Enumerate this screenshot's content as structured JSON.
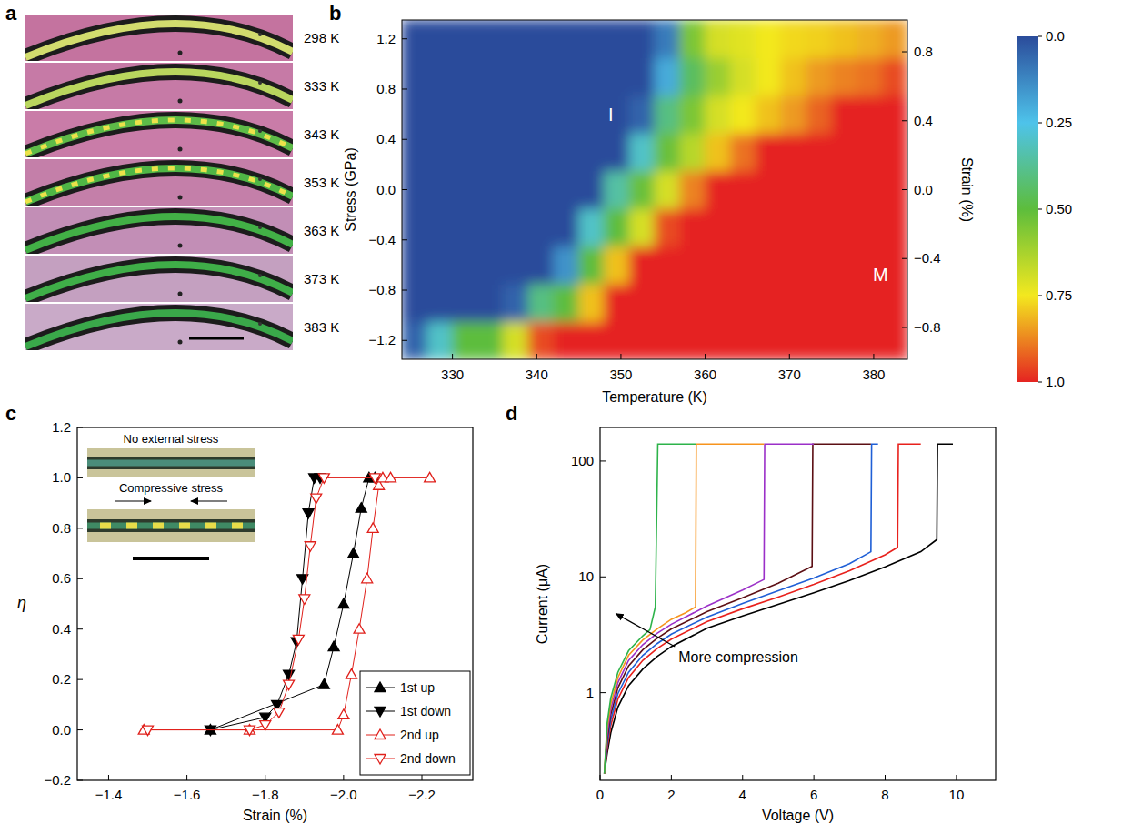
{
  "panel_a": {
    "panel": "a",
    "images": [
      {
        "label": "298 K",
        "color": "#d2dc6e",
        "domains": false
      },
      {
        "label": "333 K",
        "color": "#b9d65e",
        "domains": false
      },
      {
        "label": "343 K",
        "color": "#5dbb48",
        "domains": true
      },
      {
        "label": "353 K",
        "color": "#4fb646",
        "domains": true
      },
      {
        "label": "363 K",
        "color": "#42b046",
        "domains": false
      },
      {
        "label": "373 K",
        "color": "#3fae48",
        "domains": false
      },
      {
        "label": "383 K",
        "color": "#3aa84a",
        "domains": false
      }
    ]
  },
  "chart_data": [
    {
      "panel": "b",
      "type": "heatmap",
      "xlabel": "Temperature (K)",
      "ylabel": "Stress (GPa)",
      "y2label": "Strain (%)",
      "xlim": [
        324,
        384
      ],
      "ylim": [
        -1.35,
        1.35
      ],
      "y2lim": [
        -0.985,
        0.985
      ],
      "xticks": [
        330,
        340,
        350,
        360,
        370,
        380
      ],
      "yticks": [
        {
          "value": -1.2,
          "label": "−1.2"
        },
        {
          "value": -0.8,
          "label": "−0.8"
        },
        {
          "value": -0.4,
          "label": "−0.4"
        },
        {
          "value": 0,
          "label": "0.0"
        },
        0.4,
        0.8,
        1.2
      ],
      "y2ticks": [
        {
          "value": -0.8,
          "label": "−0.8"
        },
        {
          "value": -0.4,
          "label": "−0.4"
        },
        {
          "value": 0,
          "label": "0.0"
        },
        0.4,
        0.8
      ],
      "x": [
        325.5,
        328.5,
        331.5,
        334.5,
        337.5,
        340.5,
        343.5,
        346.5,
        349.5,
        352.5,
        355.5,
        358.5,
        361.5,
        364.5,
        367.5,
        370.5,
        373.5,
        376.5,
        379.5,
        382.5
      ],
      "y": [
        -1.2,
        -0.9,
        -0.6,
        -0.3,
        0,
        0.3,
        0.6,
        0.9,
        1.2
      ],
      "cells": [
        [
          0.05,
          0.3,
          0.5,
          0.5,
          0.7,
          0.95,
          1,
          1,
          1,
          1,
          1,
          1,
          1,
          1,
          1,
          1,
          1,
          1,
          1,
          1
        ],
        [
          0,
          0,
          0,
          0,
          0.05,
          0.4,
          0.5,
          0.8,
          1,
          1,
          1,
          1,
          1,
          1,
          1,
          1,
          1,
          1,
          1,
          1
        ],
        [
          0,
          0,
          0,
          0,
          0,
          0,
          0.15,
          0.5,
          0.8,
          1,
          1,
          1,
          1,
          1,
          1,
          1,
          1,
          1,
          1,
          1
        ],
        [
          0,
          0,
          0,
          0,
          0,
          0,
          0,
          0.3,
          0.5,
          0.7,
          0.95,
          1,
          1,
          1,
          1,
          1,
          1,
          1,
          1,
          1
        ],
        [
          0,
          0,
          0,
          0,
          0,
          0,
          0,
          0,
          0.35,
          0.52,
          0.7,
          0.88,
          1,
          1,
          1,
          1,
          1,
          1,
          1,
          1
        ],
        [
          0,
          0,
          0,
          0,
          0,
          0,
          0,
          0,
          0,
          0.3,
          0.52,
          0.65,
          0.8,
          0.9,
          1,
          1,
          1,
          1,
          1,
          1
        ],
        [
          0,
          0,
          0,
          0,
          0,
          0,
          0,
          0,
          0,
          0.05,
          0.4,
          0.55,
          0.7,
          0.75,
          0.8,
          0.85,
          0.92,
          1,
          1,
          1
        ],
        [
          0,
          0,
          0,
          0,
          0,
          0,
          0,
          0,
          0,
          0,
          0.2,
          0.45,
          0.6,
          0.7,
          0.75,
          0.8,
          0.85,
          0.88,
          0.9,
          0.95
        ],
        [
          0,
          0,
          0,
          0,
          0,
          0,
          0,
          0,
          0,
          0,
          0.1,
          0.55,
          0.7,
          0.72,
          0.75,
          0.77,
          0.78,
          0.8,
          0.82,
          0.85
        ]
      ],
      "colorbar": {
        "range": [
          0,
          1
        ],
        "ticks": [
          {
            "value": 0,
            "label": "0.0"
          },
          0.25,
          {
            "value": 0.5,
            "label": "0.50"
          },
          0.75,
          {
            "value": 1,
            "label": "1.0"
          }
        ],
        "colors": [
          "#2b4c9b",
          "#4ec3ea",
          "#5dbd3c",
          "#f3e81f",
          "#e52421"
        ]
      },
      "annotations": [
        {
          "text": "I",
          "x": 348.8,
          "y": 0.6
        },
        {
          "text": "M",
          "x": 380.8,
          "y": -0.68
        }
      ]
    },
    {
      "panel": "c",
      "type": "line",
      "xlabel": "Strain (%)",
      "ylabel": "η",
      "legend": "lower right",
      "xlim": [
        -1.32,
        -2.33
      ],
      "ylim": [
        -0.2,
        1.2
      ],
      "xticks": [
        {
          "value": -1.4,
          "label": "−1.4"
        },
        {
          "value": -1.6,
          "label": "−1.6"
        },
        {
          "value": -1.8,
          "label": "−1.8"
        },
        {
          "value": -2.0,
          "label": "−2.0"
        },
        {
          "value": -2.2,
          "label": "−2.2"
        }
      ],
      "yticks": [
        {
          "value": -0.2,
          "label": "−0.2"
        },
        {
          "value": 0,
          "label": "0.0"
        },
        0.2,
        0.4,
        0.6,
        0.8,
        {
          "value": 1,
          "label": "1.0"
        },
        1.2
      ],
      "inset": {
        "texts": [
          "No external stress",
          "Compressive stress"
        ]
      },
      "series": [
        {
          "name": "1st up",
          "color": "#000000",
          "marker": "filled-triangle-up",
          "x": [
            -1.66,
            -1.95,
            -1.975,
            -2.0,
            -2.025,
            -2.045,
            -2.065,
            -2.08
          ],
          "values": [
            0,
            0.18,
            0.33,
            0.5,
            0.7,
            0.88,
            1.0,
            1.0
          ]
        },
        {
          "name": "1st down",
          "color": "#000000",
          "marker": "filled-triangle-down",
          "x": [
            -1.94,
            -1.925,
            -1.91,
            -1.895,
            -1.88,
            -1.86,
            -1.83,
            -1.8,
            -1.66
          ],
          "values": [
            1,
            1,
            0.86,
            0.6,
            0.35,
            0.22,
            0.1,
            0.05,
            0
          ]
        },
        {
          "name": "2nd up",
          "color": "#e0201b",
          "marker": "open-triangle-up",
          "x": [
            -1.49,
            -1.76,
            -1.985,
            -2.0,
            -2.02,
            -2.04,
            -2.06,
            -2.075,
            -2.09,
            -2.1,
            -2.12,
            -2.22
          ],
          "values": [
            0,
            0,
            0,
            0.06,
            0.22,
            0.4,
            0.6,
            0.8,
            0.97,
            1,
            1,
            1
          ]
        },
        {
          "name": "2nd down",
          "color": "#e0201b",
          "marker": "open-triangle-down",
          "x": [
            -2.08,
            -1.95,
            -1.93,
            -1.915,
            -1.9,
            -1.885,
            -1.86,
            -1.835,
            -1.8,
            -1.76,
            -1.5
          ],
          "values": [
            1,
            1,
            0.92,
            0.73,
            0.52,
            0.36,
            0.18,
            0.07,
            0.02,
            0,
            0
          ]
        }
      ]
    },
    {
      "panel": "d",
      "type": "line",
      "log": "y",
      "xlabel": "Voltage (V)",
      "ylabel": "Current (μA)",
      "xlim": [
        0,
        11.1
      ],
      "ylim": [
        0.175,
        195
      ],
      "xticks": [
        0,
        2,
        4,
        6,
        8,
        10
      ],
      "yticks": [
        1,
        10,
        100
      ],
      "annotations": [
        {
          "text": "More compression",
          "x": 2.2,
          "y": 1.85,
          "arrow_from": [
            2.1,
            2.5
          ],
          "arrow_to": [
            0.45,
            4.8
          ]
        }
      ],
      "series": [
        {
          "color": "#000000",
          "x": [
            0.12,
            0.2,
            0.3,
            0.5,
            0.8,
            1.2,
            1.6,
            2,
            3,
            4,
            5,
            6,
            7,
            8,
            9,
            9.45,
            9.47,
            9.9
          ],
          "values": [
            0.2,
            0.3,
            0.45,
            0.75,
            1.15,
            1.6,
            2.05,
            2.5,
            3.6,
            4.6,
            5.8,
            7.3,
            9.3,
            12.2,
            16.5,
            21,
            140,
            140
          ]
        },
        {
          "color": "#e8211c",
          "x": [
            0.12,
            0.2,
            0.3,
            0.5,
            0.8,
            1.2,
            1.6,
            2,
            3,
            4,
            5,
            6,
            7,
            8,
            8.35,
            8.37,
            9.0
          ],
          "values": [
            0.2,
            0.33,
            0.52,
            0.88,
            1.35,
            1.9,
            2.4,
            2.9,
            4.1,
            5.3,
            6.7,
            8.6,
            11.3,
            15.5,
            18,
            140,
            140
          ]
        },
        {
          "color": "#1f5fd6",
          "x": [
            0.12,
            0.2,
            0.3,
            0.5,
            0.8,
            1.2,
            1.6,
            2,
            3,
            4,
            5,
            6,
            7,
            7.6,
            7.62,
            7.8
          ],
          "values": [
            0.2,
            0.36,
            0.58,
            0.98,
            1.5,
            2.1,
            2.65,
            3.2,
            4.5,
            5.9,
            7.6,
            9.8,
            13,
            16.5,
            140,
            140
          ]
        },
        {
          "color": "#5c0f14",
          "x": [
            0.12,
            0.2,
            0.3,
            0.5,
            0.8,
            1.2,
            1.6,
            2,
            3,
            4,
            5,
            5.95,
            5.97,
            7.6
          ],
          "values": [
            0.2,
            0.4,
            0.65,
            1.1,
            1.7,
            2.35,
            2.95,
            3.55,
            5.0,
            6.6,
            8.8,
            12.3,
            140,
            140
          ]
        },
        {
          "color": "#9b30c8",
          "x": [
            0.12,
            0.2,
            0.3,
            0.5,
            0.8,
            1.2,
            1.6,
            2,
            3,
            4,
            4.6,
            4.62,
            6.0
          ],
          "values": [
            0.2,
            0.44,
            0.72,
            1.22,
            1.9,
            2.6,
            3.25,
            3.9,
            5.6,
            7.7,
            9.5,
            140,
            140
          ]
        },
        {
          "color": "#f7941d",
          "x": [
            0.12,
            0.2,
            0.3,
            0.5,
            0.8,
            1.2,
            1.6,
            2,
            2.4,
            2.68,
            2.7,
            4.6
          ],
          "values": [
            0.2,
            0.5,
            0.8,
            1.35,
            2.1,
            2.85,
            3.55,
            4.3,
            4.9,
            5.5,
            140,
            140
          ]
        },
        {
          "color": "#2db34a",
          "x": [
            0.12,
            0.2,
            0.3,
            0.5,
            0.8,
            1.2,
            1.4,
            1.55,
            1.62,
            2.7
          ],
          "values": [
            0.2,
            0.55,
            0.9,
            1.5,
            2.3,
            3.1,
            3.5,
            5.5,
            140,
            140
          ]
        }
      ]
    }
  ]
}
